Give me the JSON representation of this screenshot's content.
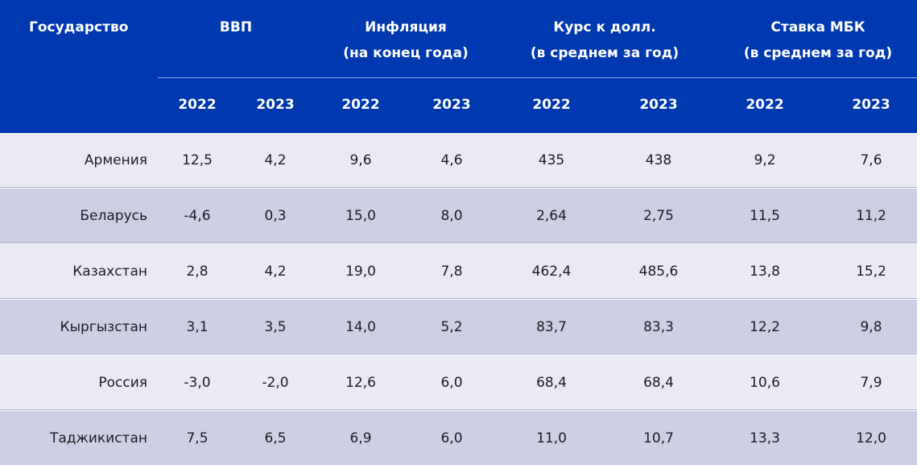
{
  "header": {
    "country": "Государство",
    "gdp": "ВВП",
    "inflation_line1": "Инфляция",
    "inflation_line2": "(на конец года)",
    "rate_line1": "Курс к долл.",
    "rate_line2": "(в среднем за год)",
    "mbk_line1": "Ставка МБК",
    "mbk_line2": "(в среднем за год)",
    "years": [
      "2022",
      "2023",
      "2022",
      "2023",
      "2022",
      "2023",
      "2022",
      "2023"
    ]
  },
  "rows": [
    {
      "country": "Армения",
      "values": [
        "12,5",
        "4,2",
        "9,6",
        "4,6",
        "435",
        "438",
        "9,2",
        "7,6"
      ]
    },
    {
      "country": "Беларусь",
      "values": [
        "-4,6",
        "0,3",
        "15,0",
        "8,0",
        "2,64",
        "2,75",
        "11,5",
        "11,2"
      ]
    },
    {
      "country": "Казахстан",
      "values": [
        "2,8",
        "4,2",
        "19,0",
        "7,8",
        "462,4",
        "485,6",
        "13,8",
        "15,2"
      ]
    },
    {
      "country": "Кыргызстан",
      "values": [
        "3,1",
        "3,5",
        "14,0",
        "5,2",
        "83,7",
        "83,3",
        "12,2",
        "9,8"
      ]
    },
    {
      "country": "Россия",
      "values": [
        "-3,0",
        "-2,0",
        "12,6",
        "6,0",
        "68,4",
        "68,4",
        "10,6",
        "7,9"
      ]
    },
    {
      "country": "Таджикистан",
      "values": [
        "7,5",
        "6,5",
        "6,9",
        "6,0",
        "11,0",
        "10,7",
        "13,3",
        "12,0"
      ]
    }
  ],
  "colors": {
    "header_bg": "#0038b0",
    "row_light": "#eaeaf3",
    "row_dark": "#cdd0e4"
  }
}
